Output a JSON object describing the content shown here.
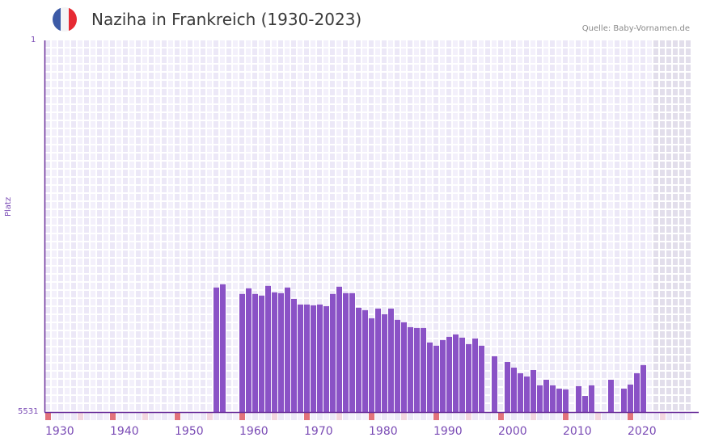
{
  "header": {
    "title": "Naziha in Frankreich (1930-2023)",
    "source": "Quelle: Baby-Vornamen.de",
    "flag": {
      "name": "france-flag",
      "colors": [
        "#3c5aa6",
        "#f4f4f6",
        "#e62a33"
      ]
    }
  },
  "colors": {
    "bar": "#8a52c6",
    "axis": "#6a2f9a",
    "cell_a": "#ece8f7",
    "cell_b": "#f3f0fb",
    "future_cell": "#e2deeb",
    "marker_strong": "#e2727b",
    "marker_light": "#f3d6df",
    "tick_text": "#7a4bb5"
  },
  "chart_data": {
    "type": "bar",
    "title": "Naziha in Frankreich (1930-2023)",
    "xlabel": "",
    "ylabel": "Platz",
    "ylim": [
      1,
      5531
    ],
    "y_inverted": true,
    "y_ticks": [
      "1",
      "5531"
    ],
    "x_ticks": [
      "1930",
      "1940",
      "1950",
      "1960",
      "1970",
      "1980",
      "1990",
      "2000",
      "2010",
      "2020"
    ],
    "x_start": 1929,
    "x_end": 2028,
    "grid": true,
    "legend": null,
    "note": "Rank per year (lower bar top = worse rank); years without bar have no data",
    "categories": [
      1955,
      1956,
      1959,
      1960,
      1961,
      1962,
      1963,
      1964,
      1965,
      1966,
      1967,
      1968,
      1969,
      1970,
      1971,
      1972,
      1973,
      1974,
      1975,
      1976,
      1977,
      1978,
      1979,
      1980,
      1981,
      1982,
      1983,
      1984,
      1985,
      1986,
      1987,
      1988,
      1989,
      1990,
      1991,
      1992,
      1993,
      1994,
      1995,
      1996,
      1998,
      2000,
      2001,
      2002,
      2003,
      2004,
      2005,
      2006,
      2007,
      2008,
      2009,
      2011,
      2012,
      2013,
      2016,
      2018,
      2019,
      2020,
      2021
    ],
    "values": [
      3678,
      3630,
      3774,
      3690,
      3774,
      3798,
      3654,
      3750,
      3762,
      3678,
      3847,
      3931,
      3931,
      3943,
      3931,
      3955,
      3774,
      3666,
      3762,
      3762,
      3979,
      4015,
      4136,
      3991,
      4075,
      3991,
      4159,
      4195,
      4268,
      4280,
      4280,
      4496,
      4544,
      4460,
      4412,
      4376,
      4424,
      4520,
      4436,
      4544,
      4701,
      4786,
      4870,
      4954,
      5002,
      4906,
      5134,
      5050,
      5134,
      5183,
      5195,
      5146,
      5291,
      5134,
      5050,
      5183,
      5122,
      4954,
      4833
    ]
  }
}
